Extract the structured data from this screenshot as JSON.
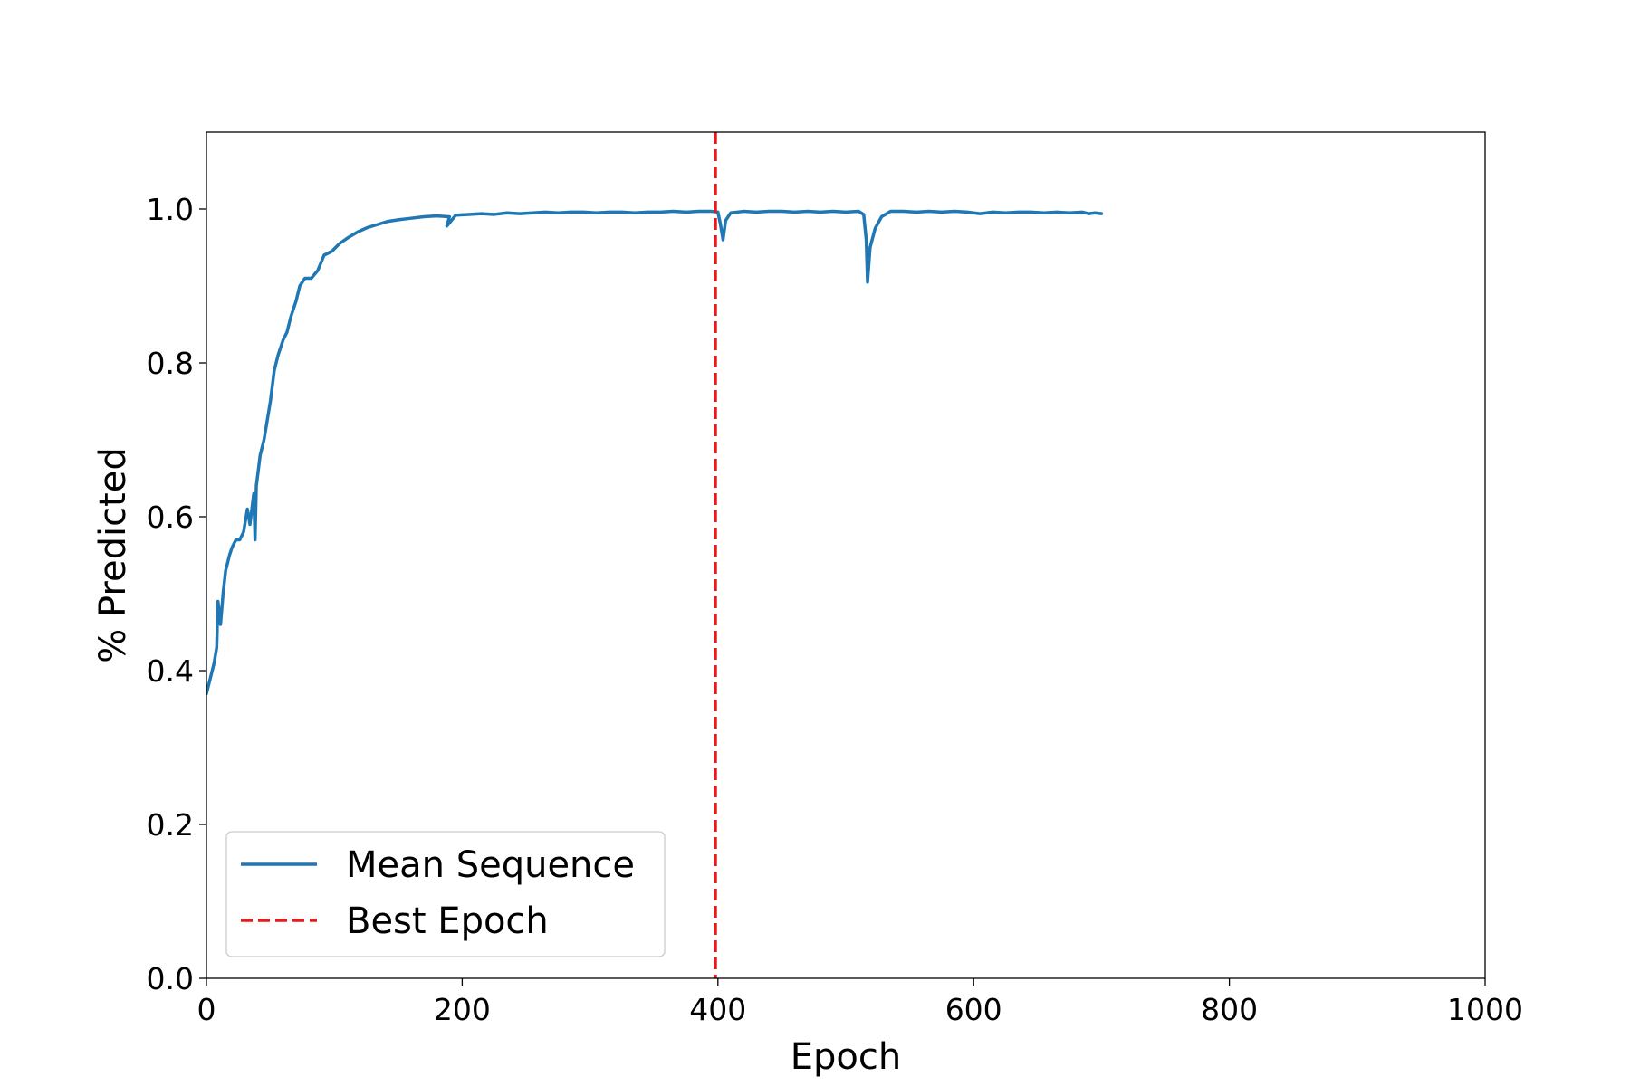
{
  "chart_data": {
    "type": "line",
    "title": "",
    "xlabel": "Epoch",
    "ylabel": "% Predicted",
    "xlim": [
      0,
      1000
    ],
    "ylim": [
      0,
      1.1
    ],
    "xticks": [
      0,
      200,
      400,
      600,
      800,
      1000
    ],
    "xtick_labels": [
      "0",
      "200",
      "400",
      "600",
      "800",
      "1000"
    ],
    "yticks": [
      0.0,
      0.2,
      0.4,
      0.6,
      0.8,
      1.0
    ],
    "ytick_labels": [
      "0.0",
      "0.2",
      "0.4",
      "0.6",
      "0.8",
      "1.0"
    ],
    "grid": false,
    "legend_position": "lower-left",
    "series": [
      {
        "name": "Mean Sequence",
        "kind": "line",
        "color": "#1f77b4",
        "points": [
          [
            0,
            0.37
          ],
          [
            3,
            0.39
          ],
          [
            6,
            0.41
          ],
          [
            8,
            0.43
          ],
          [
            9,
            0.49
          ],
          [
            11,
            0.46
          ],
          [
            13,
            0.5
          ],
          [
            15,
            0.53
          ],
          [
            18,
            0.55
          ],
          [
            20,
            0.56
          ],
          [
            23,
            0.57
          ],
          [
            26,
            0.57
          ],
          [
            29,
            0.58
          ],
          [
            32,
            0.61
          ],
          [
            34,
            0.59
          ],
          [
            37,
            0.63
          ],
          [
            38,
            0.57
          ],
          [
            39,
            0.64
          ],
          [
            42,
            0.68
          ],
          [
            45,
            0.7
          ],
          [
            48,
            0.73
          ],
          [
            50,
            0.75
          ],
          [
            53,
            0.79
          ],
          [
            56,
            0.81
          ],
          [
            60,
            0.83
          ],
          [
            63,
            0.84
          ],
          [
            66,
            0.86
          ],
          [
            70,
            0.88
          ],
          [
            73,
            0.9
          ],
          [
            77,
            0.91
          ],
          [
            82,
            0.91
          ],
          [
            87,
            0.92
          ],
          [
            92,
            0.94
          ],
          [
            98,
            0.945
          ],
          [
            104,
            0.955
          ],
          [
            110,
            0.962
          ],
          [
            118,
            0.97
          ],
          [
            126,
            0.976
          ],
          [
            134,
            0.98
          ],
          [
            142,
            0.984
          ],
          [
            150,
            0.986
          ],
          [
            160,
            0.988
          ],
          [
            170,
            0.99
          ],
          [
            180,
            0.991
          ],
          [
            190,
            0.99
          ],
          [
            188,
            0.978
          ],
          [
            195,
            0.992
          ],
          [
            205,
            0.993
          ],
          [
            215,
            0.994
          ],
          [
            225,
            0.993
          ],
          [
            235,
            0.995
          ],
          [
            245,
            0.994
          ],
          [
            255,
            0.995
          ],
          [
            265,
            0.996
          ],
          [
            275,
            0.995
          ],
          [
            285,
            0.996
          ],
          [
            295,
            0.996
          ],
          [
            305,
            0.995
          ],
          [
            315,
            0.996
          ],
          [
            325,
            0.996
          ],
          [
            335,
            0.995
          ],
          [
            345,
            0.996
          ],
          [
            355,
            0.996
          ],
          [
            365,
            0.997
          ],
          [
            375,
            0.996
          ],
          [
            385,
            0.997
          ],
          [
            395,
            0.997
          ],
          [
            400,
            0.996
          ],
          [
            402,
            0.98
          ],
          [
            404,
            0.96
          ],
          [
            406,
            0.985
          ],
          [
            410,
            0.995
          ],
          [
            420,
            0.997
          ],
          [
            430,
            0.996
          ],
          [
            440,
            0.997
          ],
          [
            450,
            0.997
          ],
          [
            460,
            0.996
          ],
          [
            470,
            0.997
          ],
          [
            480,
            0.996
          ],
          [
            490,
            0.997
          ],
          [
            500,
            0.996
          ],
          [
            510,
            0.997
          ],
          [
            514,
            0.993
          ],
          [
            516,
            0.96
          ],
          [
            517,
            0.905
          ],
          [
            519,
            0.95
          ],
          [
            523,
            0.975
          ],
          [
            528,
            0.99
          ],
          [
            535,
            0.997
          ],
          [
            545,
            0.997
          ],
          [
            555,
            0.996
          ],
          [
            565,
            0.997
          ],
          [
            575,
            0.996
          ],
          [
            585,
            0.997
          ],
          [
            595,
            0.996
          ],
          [
            605,
            0.994
          ],
          [
            615,
            0.996
          ],
          [
            625,
            0.995
          ],
          [
            635,
            0.996
          ],
          [
            645,
            0.996
          ],
          [
            655,
            0.995
          ],
          [
            665,
            0.996
          ],
          [
            675,
            0.995
          ],
          [
            685,
            0.996
          ],
          [
            690,
            0.994
          ],
          [
            695,
            0.995
          ],
          [
            700,
            0.994
          ]
        ]
      },
      {
        "name": "Best Epoch",
        "kind": "vline",
        "color": "#e41a1c",
        "dashed": true,
        "x": 398
      }
    ]
  }
}
